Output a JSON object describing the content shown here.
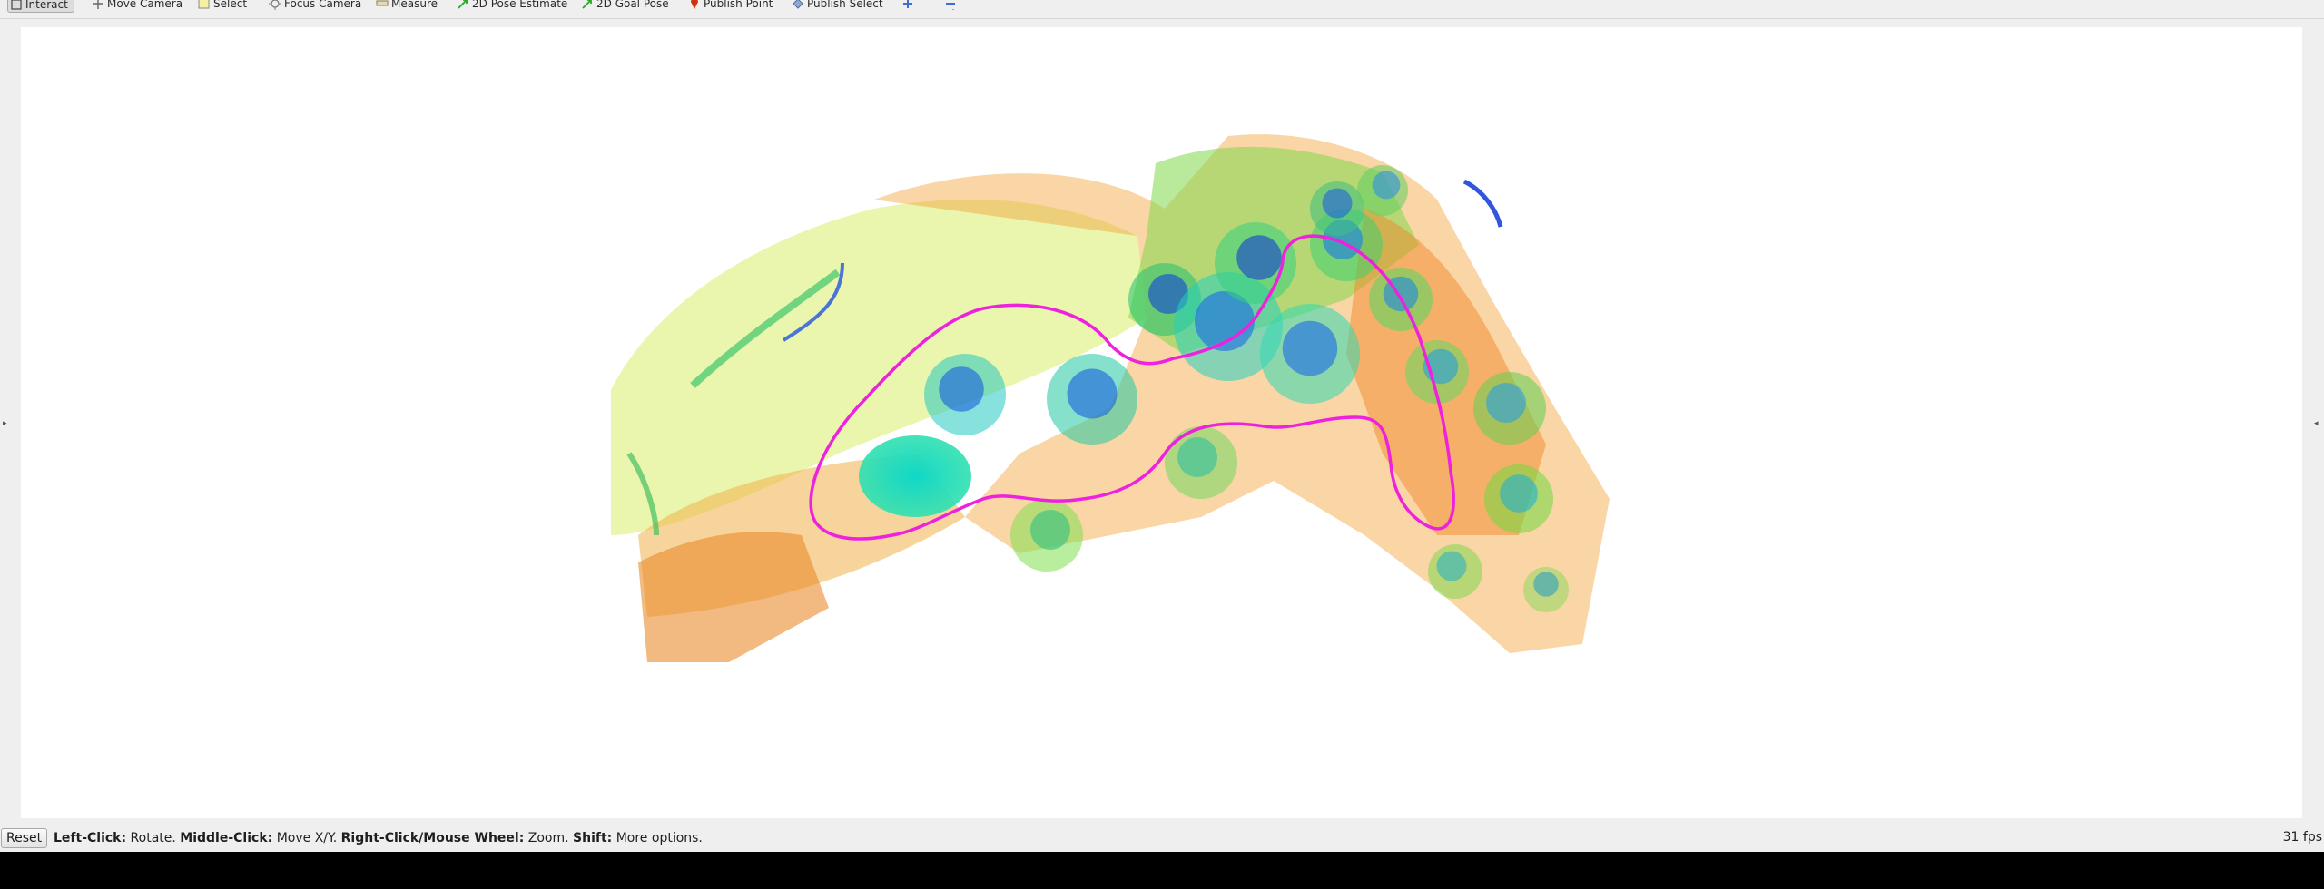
{
  "toolbar": {
    "tools": [
      {
        "label": "Interact",
        "icon": "interact-icon",
        "active": true
      },
      {
        "label": "Move Camera",
        "icon": "move-camera-icon"
      },
      {
        "label": "Select",
        "icon": "select-icon"
      },
      {
        "label": "Focus Camera",
        "icon": "focus-camera-icon"
      },
      {
        "label": "Measure",
        "icon": "measure-icon"
      },
      {
        "label": "2D Pose Estimate",
        "icon": "pose-estimate-arrow-icon"
      },
      {
        "label": "2D Goal Pose",
        "icon": "goal-pose-arrow-icon"
      },
      {
        "label": "Publish Point",
        "icon": "map-pin-icon"
      },
      {
        "label": "Publish Select",
        "icon": "publish-select-icon"
      }
    ],
    "add_tool_icon": "plus-icon",
    "remove_tool_icon": "minus-icon"
  },
  "viewport": {
    "content": "3D point cloud with trajectory path",
    "background": "#ffffff",
    "path_color": "#ff00ff"
  },
  "statusbar": {
    "reset_label": "Reset",
    "hint_parts": [
      {
        "bold": "Left-Click:",
        "text": " Rotate. "
      },
      {
        "bold": "Middle-Click:",
        "text": " Move X/Y. "
      },
      {
        "bold": "Right-Click/Mouse Wheel:",
        "text": " Zoom. "
      },
      {
        "bold": "Shift:",
        "text": " More options."
      }
    ],
    "fps": "31 fps"
  }
}
